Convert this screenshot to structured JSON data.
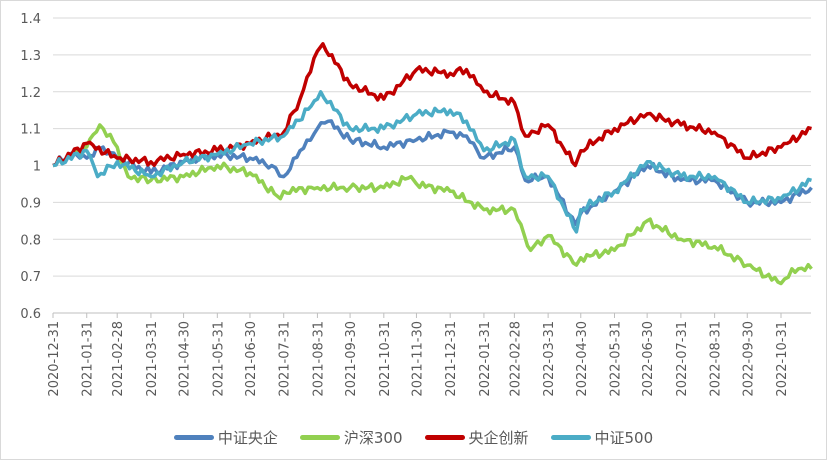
{
  "chart_data": {
    "type": "line",
    "title": "",
    "xlabel": "",
    "ylabel": "",
    "ylim": [
      0.6,
      1.4
    ],
    "yticks": [
      "0.6",
      "0.7",
      "0.8",
      "0.9",
      "1",
      "1.1",
      "1.2",
      "1.3",
      "1.4"
    ],
    "xticks": [
      "2020-12-31",
      "2021-01-31",
      "2021-02-28",
      "2021-03-31",
      "2021-04-30",
      "2021-05-31",
      "2021-06-30",
      "2021-07-31",
      "2021-08-31",
      "2021-09-30",
      "2021-10-31",
      "2021-11-30",
      "2021-12-31",
      "2022-01-31",
      "2022-02-28",
      "2022-03-31",
      "2022-04-30",
      "2022-05-31",
      "2022-06-30",
      "2022-07-31",
      "2022-08-31",
      "2022-09-30",
      "2022-10-31"
    ],
    "grid": true,
    "legend_position": "bottom",
    "series": [
      {
        "name": "中证央企",
        "color": "#4F81BD",
        "points": [
          [
            "2020-12-31",
            1.0
          ],
          [
            "2021-01-15",
            1.03
          ],
          [
            "2021-01-31",
            1.02
          ],
          [
            "2021-02-15",
            1.05
          ],
          [
            "2021-02-28",
            1.02
          ],
          [
            "2021-03-31",
            0.98
          ],
          [
            "2021-04-30",
            1.01
          ],
          [
            "2021-05-31",
            1.03
          ],
          [
            "2021-06-30",
            1.02
          ],
          [
            "2021-07-20",
            1.0
          ],
          [
            "2021-07-31",
            0.97
          ],
          [
            "2021-08-15",
            1.04
          ],
          [
            "2021-08-31",
            1.1
          ],
          [
            "2021-09-10",
            1.12
          ],
          [
            "2021-09-30",
            1.07
          ],
          [
            "2021-10-31",
            1.05
          ],
          [
            "2021-11-30",
            1.07
          ],
          [
            "2021-12-31",
            1.09
          ],
          [
            "2022-01-15",
            1.08
          ],
          [
            "2022-01-31",
            1.02
          ],
          [
            "2022-02-28",
            1.05
          ],
          [
            "2022-03-10",
            0.96
          ],
          [
            "2022-03-31",
            0.97
          ],
          [
            "2022-04-25",
            0.84
          ],
          [
            "2022-04-30",
            0.87
          ],
          [
            "2022-05-31",
            0.93
          ],
          [
            "2022-06-30",
            1.0
          ],
          [
            "2022-07-31",
            0.96
          ],
          [
            "2022-08-31",
            0.96
          ],
          [
            "2022-09-30",
            0.9
          ],
          [
            "2022-10-31",
            0.9
          ],
          [
            "2022-11-28",
            0.94
          ]
        ]
      },
      {
        "name": "沪深300",
        "color": "#92D050",
        "points": [
          [
            "2020-12-31",
            1.0
          ],
          [
            "2021-01-31",
            1.05
          ],
          [
            "2021-02-12",
            1.11
          ],
          [
            "2021-02-28",
            1.05
          ],
          [
            "2021-03-10",
            0.97
          ],
          [
            "2021-03-31",
            0.96
          ],
          [
            "2021-04-30",
            0.97
          ],
          [
            "2021-05-31",
            1.0
          ],
          [
            "2021-06-30",
            0.98
          ],
          [
            "2021-07-28",
            0.91
          ],
          [
            "2021-07-31",
            0.93
          ],
          [
            "2021-08-31",
            0.94
          ],
          [
            "2021-09-30",
            0.94
          ],
          [
            "2021-10-31",
            0.94
          ],
          [
            "2021-11-25",
            0.97
          ],
          [
            "2021-11-30",
            0.95
          ],
          [
            "2021-12-31",
            0.93
          ],
          [
            "2022-01-31",
            0.88
          ],
          [
            "2022-02-28",
            0.88
          ],
          [
            "2022-03-15",
            0.77
          ],
          [
            "2022-03-31",
            0.81
          ],
          [
            "2022-04-26",
            0.73
          ],
          [
            "2022-04-30",
            0.75
          ],
          [
            "2022-05-31",
            0.77
          ],
          [
            "2022-06-30",
            0.85
          ],
          [
            "2022-07-31",
            0.8
          ],
          [
            "2022-08-31",
            0.78
          ],
          [
            "2022-09-30",
            0.73
          ],
          [
            "2022-10-31",
            0.68
          ],
          [
            "2022-11-10",
            0.72
          ],
          [
            "2022-11-28",
            0.72
          ]
        ]
      },
      {
        "name": "央企创新",
        "color": "#C00000",
        "points": [
          [
            "2020-12-31",
            1.0
          ],
          [
            "2021-01-31",
            1.06
          ],
          [
            "2021-02-28",
            1.02
          ],
          [
            "2021-03-31",
            1.01
          ],
          [
            "2021-04-30",
            1.03
          ],
          [
            "2021-05-31",
            1.04
          ],
          [
            "2021-06-30",
            1.06
          ],
          [
            "2021-07-31",
            1.09
          ],
          [
            "2021-08-15",
            1.18
          ],
          [
            "2021-08-31",
            1.31
          ],
          [
            "2021-09-05",
            1.33
          ],
          [
            "2021-09-30",
            1.22
          ],
          [
            "2021-10-31",
            1.18
          ],
          [
            "2021-11-30",
            1.26
          ],
          [
            "2021-12-31",
            1.25
          ],
          [
            "2022-01-15",
            1.26
          ],
          [
            "2022-01-31",
            1.2
          ],
          [
            "2022-02-28",
            1.17
          ],
          [
            "2022-03-10",
            1.08
          ],
          [
            "2022-03-31",
            1.11
          ],
          [
            "2022-04-25",
            1.0
          ],
          [
            "2022-04-30",
            1.04
          ],
          [
            "2022-05-31",
            1.1
          ],
          [
            "2022-06-30",
            1.14
          ],
          [
            "2022-07-31",
            1.11
          ],
          [
            "2022-08-31",
            1.09
          ],
          [
            "2022-09-30",
            1.02
          ],
          [
            "2022-10-31",
            1.05
          ],
          [
            "2022-11-28",
            1.1
          ]
        ]
      },
      {
        "name": "中证500",
        "color": "#4BACC6",
        "points": [
          [
            "2020-12-31",
            1.0
          ],
          [
            "2021-01-31",
            1.04
          ],
          [
            "2021-02-10",
            0.97
          ],
          [
            "2021-02-28",
            1.01
          ],
          [
            "2021-03-31",
            0.97
          ],
          [
            "2021-04-30",
            1.01
          ],
          [
            "2021-05-31",
            1.03
          ],
          [
            "2021-06-30",
            1.06
          ],
          [
            "2021-07-31",
            1.08
          ],
          [
            "2021-08-31",
            1.18
          ],
          [
            "2021-09-03",
            1.2
          ],
          [
            "2021-09-30",
            1.1
          ],
          [
            "2021-10-31",
            1.1
          ],
          [
            "2021-11-30",
            1.14
          ],
          [
            "2021-12-31",
            1.15
          ],
          [
            "2022-01-15",
            1.12
          ],
          [
            "2022-01-31",
            1.04
          ],
          [
            "2022-02-28",
            1.07
          ],
          [
            "2022-03-10",
            0.97
          ],
          [
            "2022-03-31",
            0.97
          ],
          [
            "2022-04-26",
            0.82
          ],
          [
            "2022-04-30",
            0.88
          ],
          [
            "2022-05-31",
            0.93
          ],
          [
            "2022-06-30",
            1.01
          ],
          [
            "2022-07-31",
            0.97
          ],
          [
            "2022-08-31",
            0.97
          ],
          [
            "2022-09-30",
            0.9
          ],
          [
            "2022-10-31",
            0.91
          ],
          [
            "2022-11-28",
            0.96
          ]
        ]
      }
    ]
  }
}
